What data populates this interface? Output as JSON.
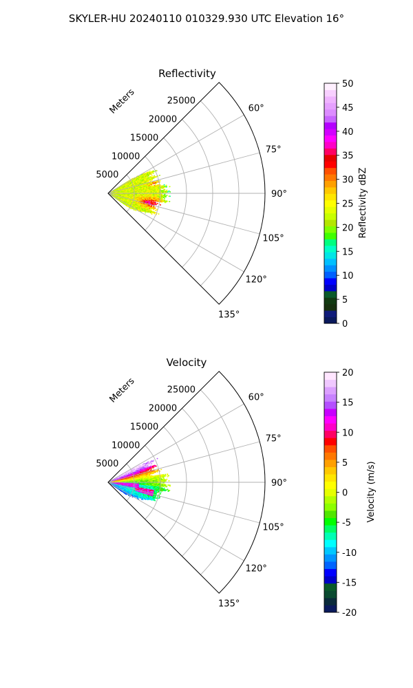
{
  "figure": {
    "suptitle": "SKYLER-HU  20240110  010329.930 UTC Elevation 16°"
  },
  "chart_data": [
    {
      "type": "heatmap",
      "title": "Reflectivity",
      "range_label": "Meters",
      "range_ticks": [
        5000,
        10000,
        15000,
        20000,
        25000
      ],
      "range_max": 30000,
      "theta_ticks": [
        60,
        75,
        90,
        105,
        120,
        135
      ],
      "theta_range_deg": [
        45,
        135
      ],
      "colorbar": {
        "label": "Reflectivity dBZ",
        "ticks": [
          0,
          5,
          10,
          15,
          20,
          25,
          30,
          35,
          40,
          45,
          50
        ],
        "vmin": 0,
        "vmax": 50,
        "colors": [
          "#0a1a5c",
          "#101c7a",
          "#17300f",
          "#123a12",
          "#0a5a2a",
          "#0000c8",
          "#0000ff",
          "#0060ff",
          "#0090ff",
          "#00c0ff",
          "#00e6e6",
          "#00ffc8",
          "#00ff80",
          "#40ff00",
          "#80ff00",
          "#b4e600",
          "#c8ff00",
          "#e6ff00",
          "#ffff00",
          "#ffe600",
          "#ffc800",
          "#ffa000",
          "#ff7800",
          "#ff5000",
          "#ff0000",
          "#e60000",
          "#ff0064",
          "#ff00c8",
          "#ff00ff",
          "#d200ff",
          "#b400ff",
          "#c864ff",
          "#dc8cff",
          "#e6a0ff",
          "#f0b4ff",
          "#f8d0ff",
          "#fff0ff"
        ]
      },
      "field": "reflectivity"
    },
    {
      "type": "heatmap",
      "title": "Velocity",
      "range_label": "Meters",
      "range_ticks": [
        5000,
        10000,
        15000,
        20000,
        25000
      ],
      "range_max": 30000,
      "theta_ticks": [
        60,
        75,
        90,
        105,
        120,
        135
      ],
      "theta_range_deg": [
        45,
        135
      ],
      "colorbar": {
        "label": "Velocity (m/s)",
        "ticks": [
          -20,
          -15,
          -10,
          -5,
          0,
          5,
          10,
          15,
          20
        ],
        "vmin": -20,
        "vmax": 20,
        "colors": [
          "#0a1a5c",
          "#0a2a3a",
          "#0a4a30",
          "#0a5a2a",
          "#0000c8",
          "#0000ff",
          "#0064ff",
          "#0096ff",
          "#00c8ff",
          "#00ffff",
          "#00ffb4",
          "#00ff64",
          "#00ff00",
          "#50e600",
          "#8cff00",
          "#b4ff00",
          "#e6ff00",
          "#ffff00",
          "#ffe600",
          "#ffc800",
          "#ffa000",
          "#ff7800",
          "#ff5000",
          "#ff0000",
          "#ff0064",
          "#ff00c8",
          "#ff00ff",
          "#c800ff",
          "#b450ff",
          "#c882ff",
          "#dca0ff",
          "#f0c8ff",
          "#ffe6ff"
        ]
      },
      "field": "velocity"
    }
  ]
}
